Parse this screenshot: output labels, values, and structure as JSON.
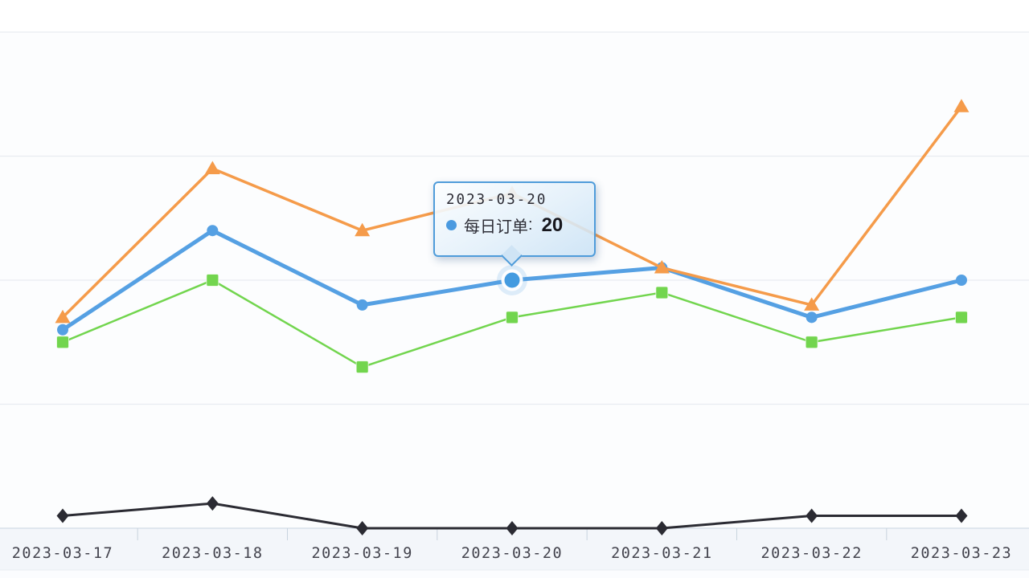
{
  "chart_data": {
    "type": "line",
    "title": "",
    "categories": [
      "2023-03-17",
      "2023-03-18",
      "2023-03-19",
      "2023-03-20",
      "2023-03-21",
      "2023-03-22",
      "2023-03-23"
    ],
    "ylim": [
      0,
      40
    ],
    "y_gridline_step": 10,
    "grid": true,
    "legend_position": "none",
    "series": [
      {
        "name": "",
        "marker": "square",
        "color": "#72d54e",
        "line_width": 2.5,
        "values": [
          15,
          20,
          13,
          17,
          19,
          15,
          17
        ]
      },
      {
        "name": "每日订单",
        "marker": "circle",
        "color": "#55a0e3",
        "line_width": 5,
        "values": [
          16,
          24,
          18,
          20,
          21,
          17,
          20
        ]
      },
      {
        "name": "",
        "marker": "triangle",
        "color": "#f59b4a",
        "line_width": 3.5,
        "values": [
          17,
          29,
          24,
          27,
          21,
          18,
          34
        ]
      },
      {
        "name": "",
        "marker": "diamond",
        "color": "#2b2b33",
        "line_width": 3,
        "values": [
          1,
          2,
          0,
          0,
          0,
          1,
          1
        ]
      }
    ],
    "highlight": {
      "series_index": 1,
      "category_index": 3
    },
    "axis": {
      "label_color": "#44444e",
      "grid_color": "#e8ecf1",
      "line_color": "#d8e0e9",
      "tick_color": "#c8d3de"
    }
  },
  "tooltip": {
    "date": "2023-03-20",
    "series_label": "每日订单",
    "separator": ":",
    "value": "20",
    "marker_color": "#4a9ae0",
    "border_color": "#4f9cda"
  }
}
